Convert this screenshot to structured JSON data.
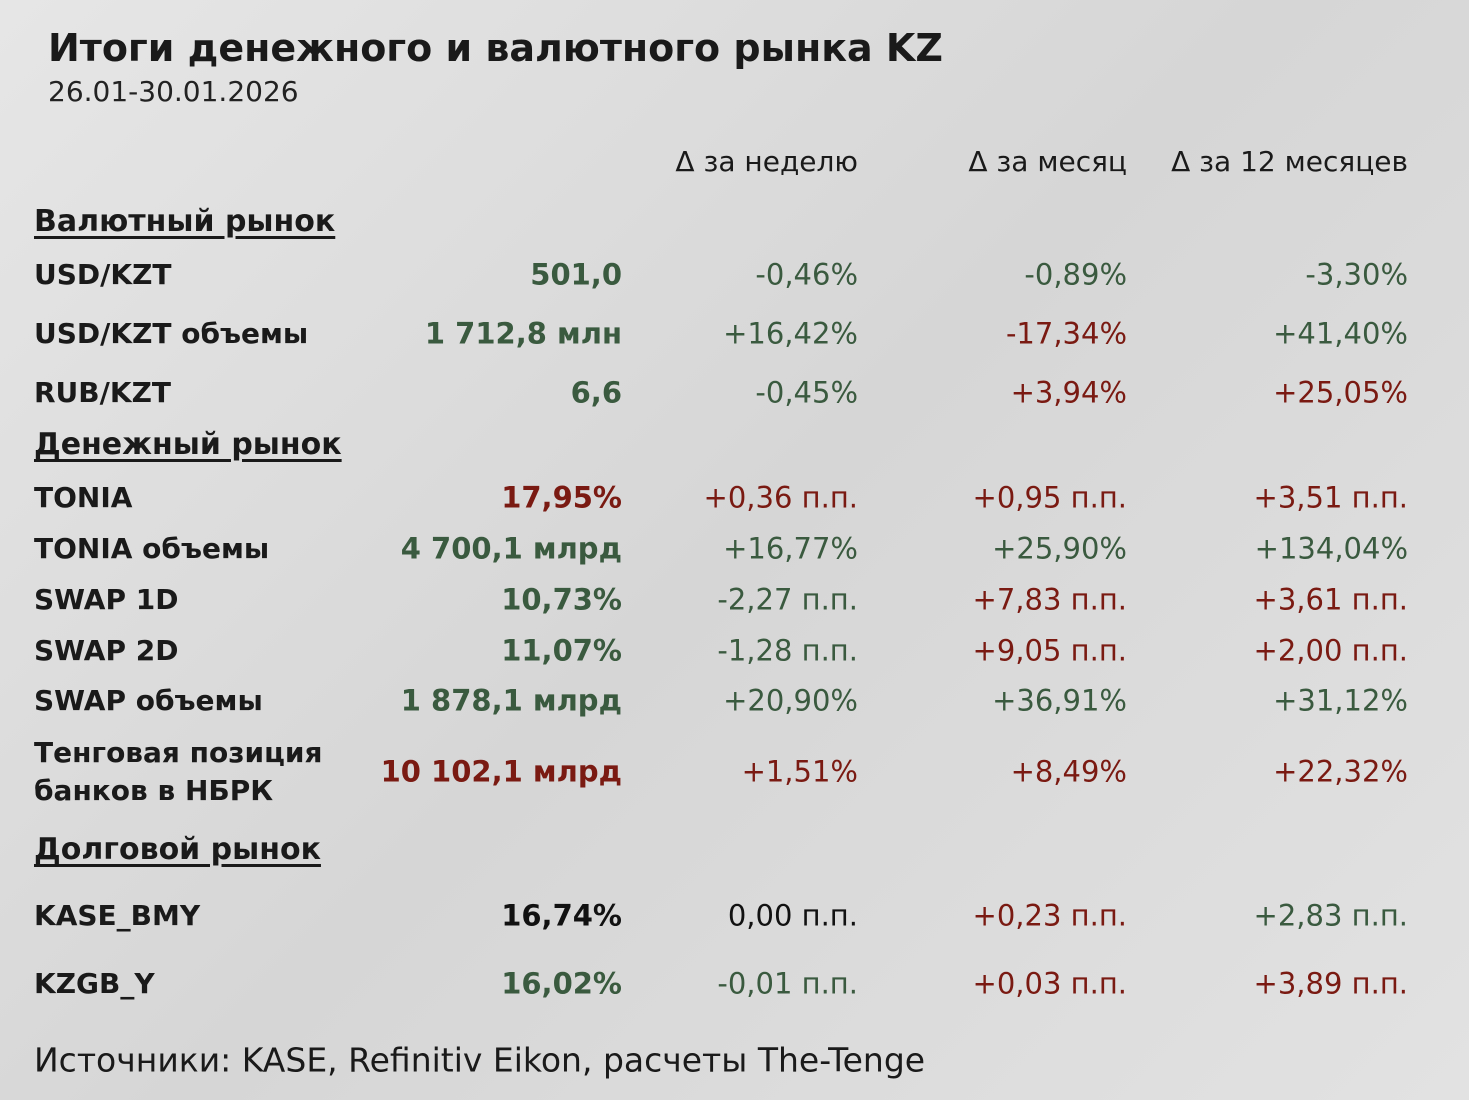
{
  "header": {
    "title": "Итоги денежного и валютного рынка KZ",
    "subtitle": "26.01-30.01.2026"
  },
  "columns": [
    "Δ за неделю",
    "Δ за месяц",
    "Δ за 12 месяцев"
  ],
  "sections": [
    {
      "title": "Валютный рынок",
      "rows": [
        {
          "label": "USD/KZT",
          "value": "501,0",
          "changes": [
            "-0,46%",
            "-0,89%",
            "-3,30%"
          ]
        },
        {
          "label": "USD/KZT объемы",
          "value": "1 712,8 млн",
          "changes": [
            "+16,42%",
            "-17,34%",
            "+41,40%"
          ]
        },
        {
          "label": "RUB/KZT",
          "value": "6,6",
          "changes": [
            "-0,45%",
            "+3,94%",
            "+25,05%"
          ]
        }
      ]
    },
    {
      "title": "Денежный рынок",
      "rows": [
        {
          "label": "TONIA",
          "value": "17,95%",
          "changes": [
            "+0,36 п.п.",
            "+0,95 п.п.",
            "+3,51 п.п."
          ]
        },
        {
          "label": "TONIA объемы",
          "value": "4 700,1 млрд",
          "changes": [
            "+16,77%",
            "+25,90%",
            "+134,04%"
          ]
        },
        {
          "label": "SWAP 1D",
          "value": "10,73%",
          "changes": [
            "-2,27 п.п.",
            "+7,83 п.п.",
            "+3,61 п.п."
          ]
        },
        {
          "label": "SWAP 2D",
          "value": "11,07%",
          "changes": [
            "-1,28 п.п.",
            "+9,05 п.п.",
            "+2,00 п.п."
          ]
        },
        {
          "label": "SWAP объемы",
          "value": "1 878,1 млрд",
          "changes": [
            "+20,90%",
            "+36,91%",
            "+31,12%"
          ]
        },
        {
          "label": "Тенговая позиция банков в НБРК",
          "value": "10 102,1 млрд",
          "changes": [
            "+1,51%",
            "+8,49%",
            "+22,32%"
          ]
        }
      ]
    },
    {
      "title": "Долговой рынок",
      "rows": [
        {
          "label": "KASE_BMY",
          "value": "16,74%",
          "changes": [
            "0,00 п.п.",
            "+0,23 п.п.",
            "+2,83 п.п."
          ]
        },
        {
          "label": "KZGB_Y",
          "value": "16,02%",
          "changes": [
            "-0,01 п.п.",
            "+0,03 п.п.",
            "+3,89 п.п."
          ]
        }
      ]
    }
  ],
  "source": "Источники: KASE, Refinitiv Eikon, расчеты The-Tenge"
}
